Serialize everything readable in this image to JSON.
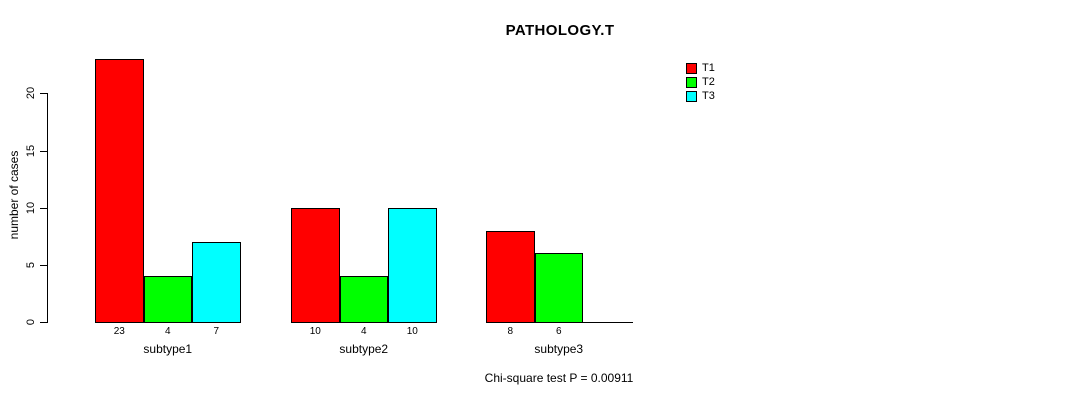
{
  "chart_data": {
    "type": "bar",
    "title": "PATHOLOGY.T",
    "ylabel": "number of cases",
    "xlabel": "",
    "footnote": "Chi-square test P = 0.00911",
    "categories": [
      "subtype1",
      "subtype2",
      "subtype3"
    ],
    "series": [
      {
        "name": "T1",
        "color": "#FF0000",
        "values": [
          23,
          10,
          8
        ]
      },
      {
        "name": "T2",
        "color": "#00FF00",
        "values": [
          4,
          4,
          6
        ]
      },
      {
        "name": "T3",
        "color": "#00FFFF",
        "values": [
          7,
          10,
          0
        ]
      }
    ],
    "bar_value_labels": [
      [
        "23",
        "4",
        "7"
      ],
      [
        "10",
        "4",
        "10"
      ],
      [
        "8",
        "6",
        ""
      ]
    ],
    "y_ticks": [
      0,
      5,
      10,
      15,
      20
    ],
    "ylim": [
      0,
      23
    ],
    "grid": false,
    "legend_position": "top-right"
  }
}
